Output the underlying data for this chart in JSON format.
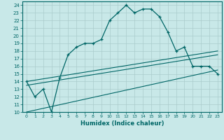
{
  "xlabel": "Humidex (Indice chaleur)",
  "background_color": "#c8e8e8",
  "grid_color": "#aacccc",
  "line_color": "#006666",
  "xlim": [
    -0.5,
    23.5
  ],
  "ylim": [
    10,
    24.5
  ],
  "yticks": [
    10,
    11,
    12,
    13,
    14,
    15,
    16,
    17,
    18,
    19,
    20,
    21,
    22,
    23,
    24
  ],
  "xticks": [
    0,
    1,
    2,
    3,
    4,
    5,
    6,
    7,
    8,
    9,
    10,
    11,
    12,
    13,
    14,
    15,
    16,
    17,
    18,
    19,
    20,
    21,
    22,
    23
  ],
  "main_line_x": [
    0,
    1,
    2,
    3,
    4,
    5,
    6,
    7,
    8,
    9,
    10,
    11,
    12,
    13,
    14,
    15,
    16,
    17,
    18,
    19,
    20,
    21,
    22,
    23
  ],
  "main_line_y": [
    14,
    12,
    13,
    10,
    14.5,
    17.5,
    18.5,
    19,
    19,
    19.5,
    22,
    23,
    24,
    23,
    23.5,
    23.5,
    22.5,
    20.5,
    18,
    18.5,
    16,
    16,
    16,
    15
  ],
  "line2_x": [
    0,
    23
  ],
  "line2_y": [
    14,
    18
  ],
  "line3_x": [
    0,
    23
  ],
  "line3_y": [
    13.5,
    17.5
  ],
  "line4_x": [
    0,
    23
  ],
  "line4_y": [
    10,
    15.5
  ]
}
